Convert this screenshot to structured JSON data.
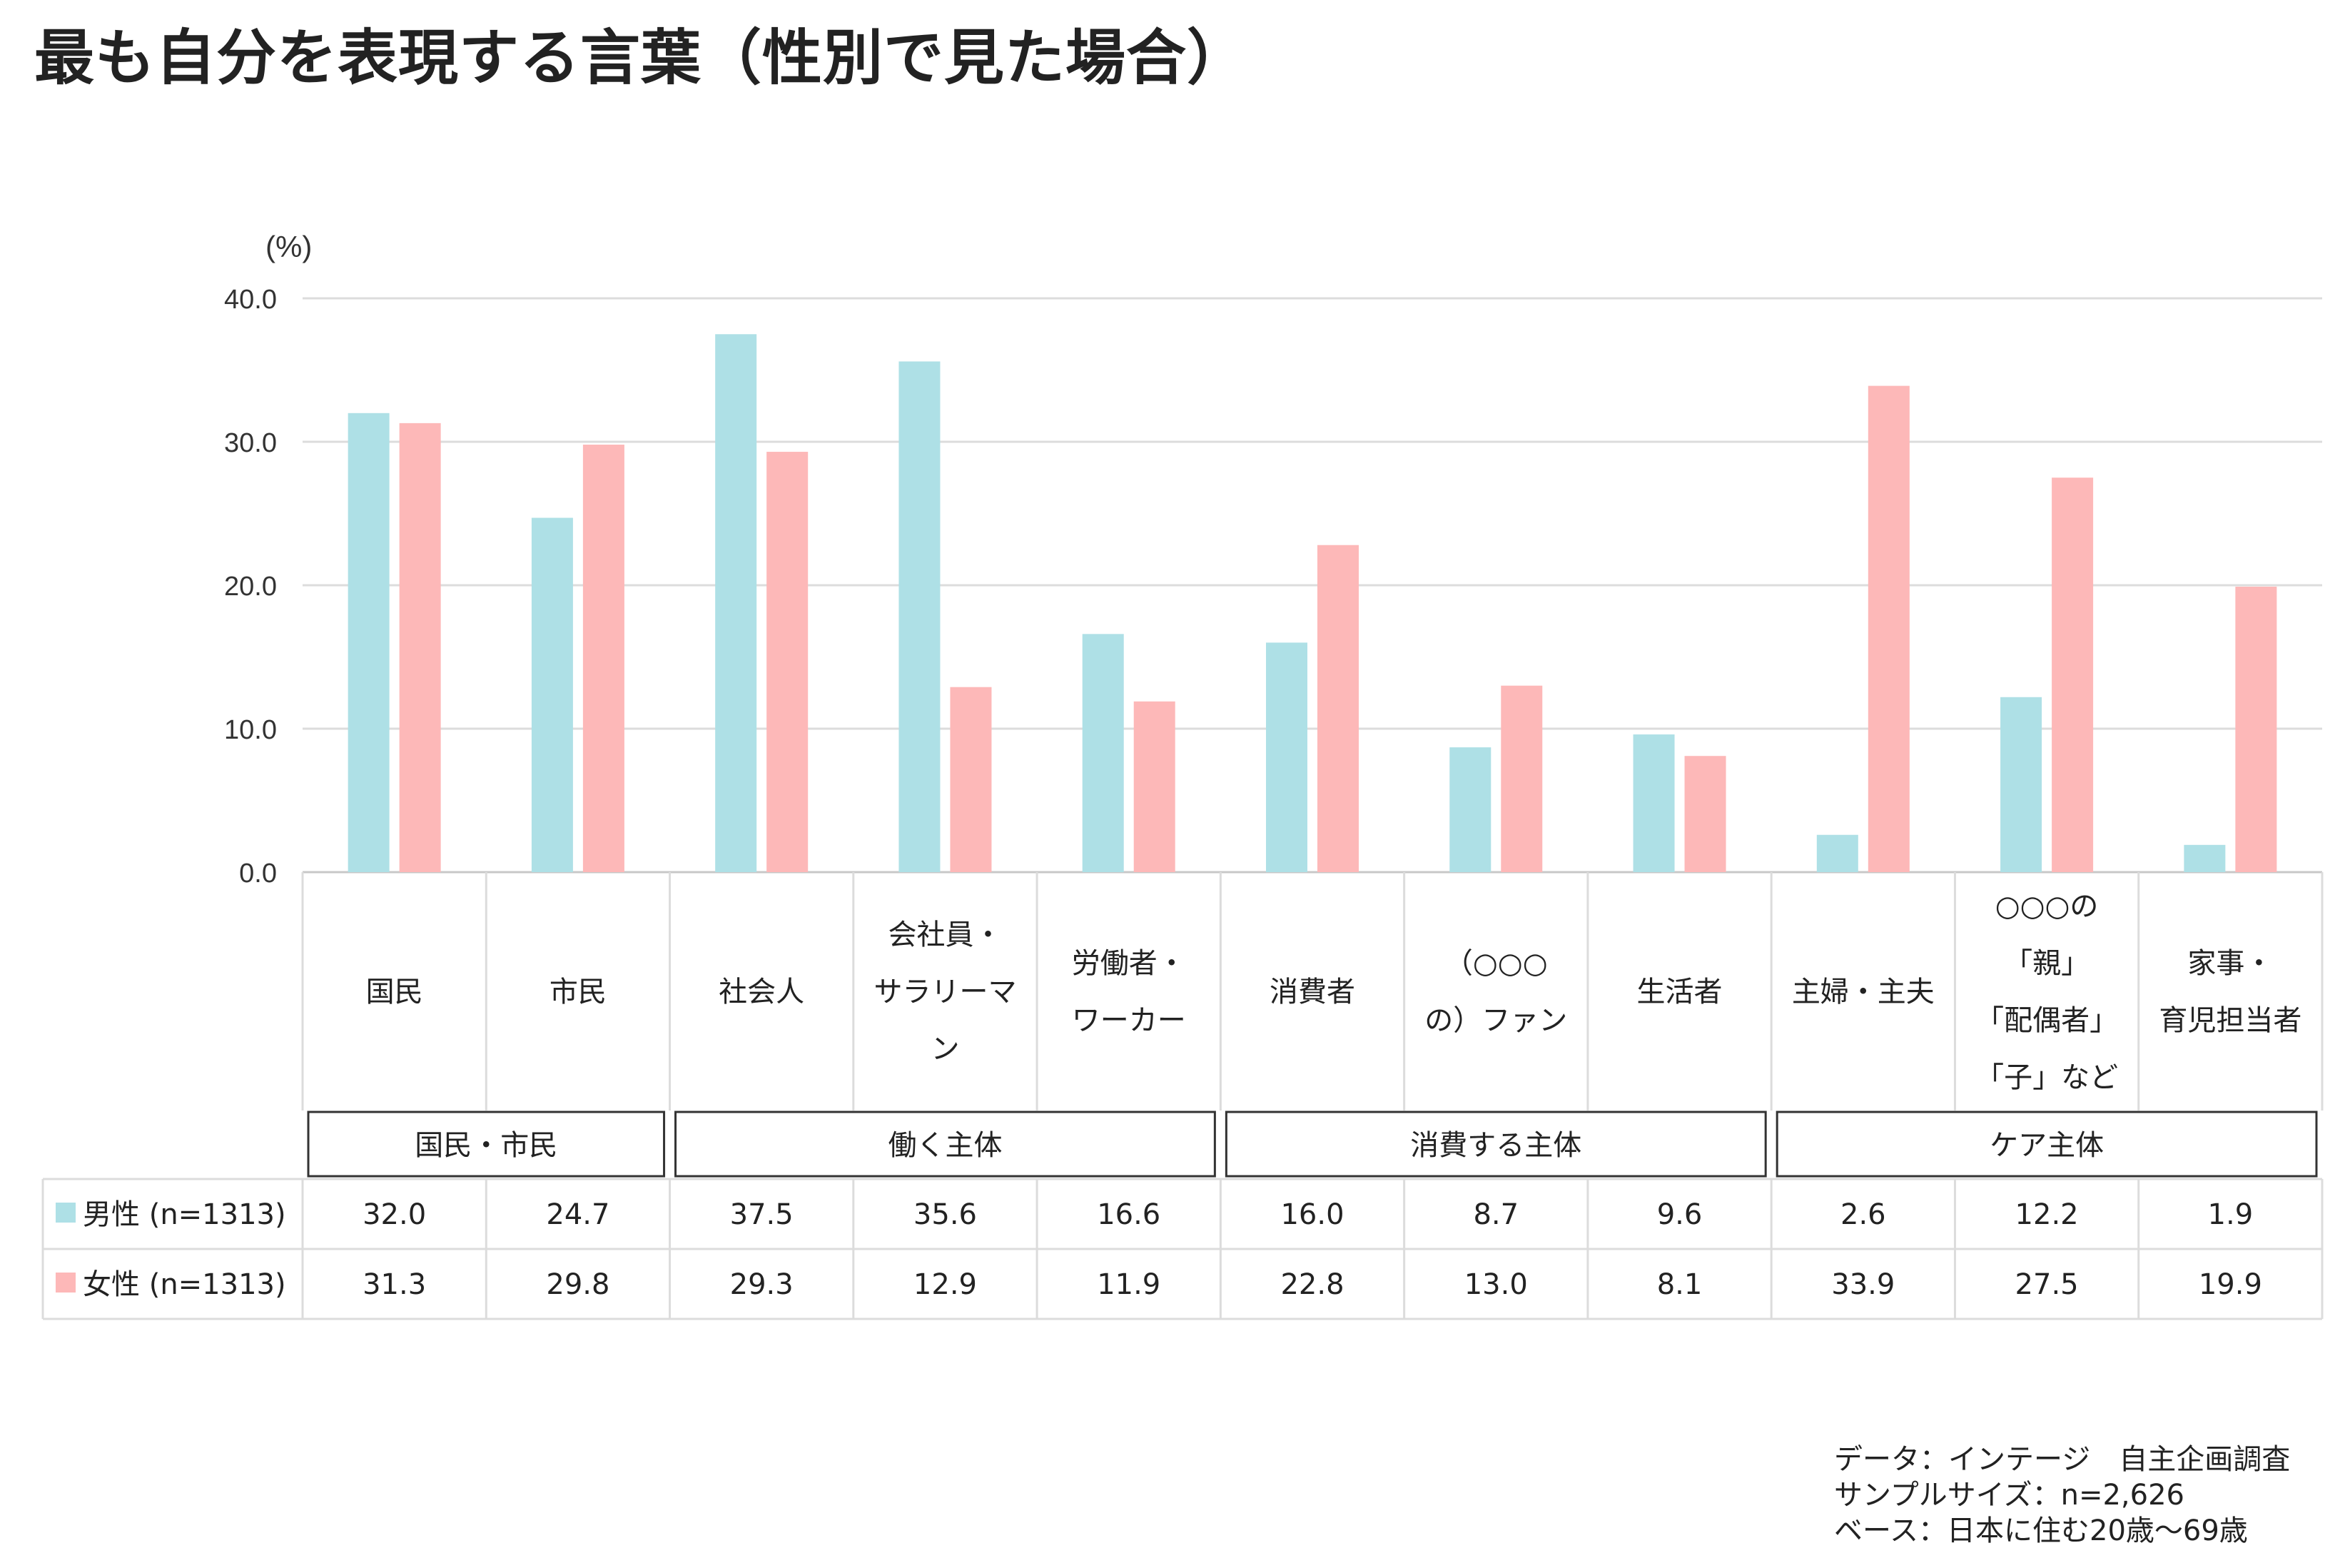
{
  "title": "最も自分を表現する言葉（性別で見た場合）",
  "chart_data": {
    "type": "bar",
    "y_unit": "(%)",
    "ylim": [
      0,
      40
    ],
    "yticks": [
      "40.0",
      "30.0",
      "20.0",
      "10.0",
      "0.0"
    ],
    "categories": [
      [
        "国民"
      ],
      [
        "市民"
      ],
      [
        "社会人"
      ],
      [
        "会社員・",
        "サラリーマ",
        "ン"
      ],
      [
        "労働者・",
        "ワーカー"
      ],
      [
        "消費者"
      ],
      [
        "（○○○",
        "の）ファン"
      ],
      [
        "生活者"
      ],
      [
        "主婦・主夫"
      ],
      [
        "○○○の",
        "「親」",
        "「配偶者」",
        "「子」など"
      ],
      [
        "家事・",
        "育児担当者"
      ]
    ],
    "groups": [
      {
        "label": "国民・市民",
        "span": 2
      },
      {
        "label": "働く主体",
        "span": 3
      },
      {
        "label": "消費する主体",
        "span": 3
      },
      {
        "label": "ケア主体",
        "span": 3
      }
    ],
    "series": [
      {
        "name": "男性 (n=1313)",
        "color": "#aee0e6",
        "values": [
          32.0,
          24.7,
          37.5,
          35.6,
          16.6,
          16.0,
          8.7,
          9.6,
          2.6,
          12.2,
          1.9
        ],
        "labels": [
          "32.0",
          "24.7",
          "37.5",
          "35.6",
          "16.6",
          "16.0",
          "8.7",
          "9.6",
          "2.6",
          "12.2",
          "1.9"
        ]
      },
      {
        "name": "女性 (n=1313)",
        "color": "#fdb8b8",
        "values": [
          31.3,
          29.8,
          29.3,
          12.9,
          11.9,
          22.8,
          13.0,
          8.1,
          33.9,
          27.5,
          19.9
        ],
        "labels": [
          "31.3",
          "29.8",
          "29.3",
          "12.9",
          "11.9",
          "22.8",
          "13.0",
          "8.1",
          "33.9",
          "27.5",
          "19.9"
        ]
      }
    ],
    "grid": true
  },
  "source": [
    "データ：インテージ　自主企画調査",
    "サンプルサイズ：n=2,626",
    "ベース：日本に住む20歳〜69歳"
  ]
}
